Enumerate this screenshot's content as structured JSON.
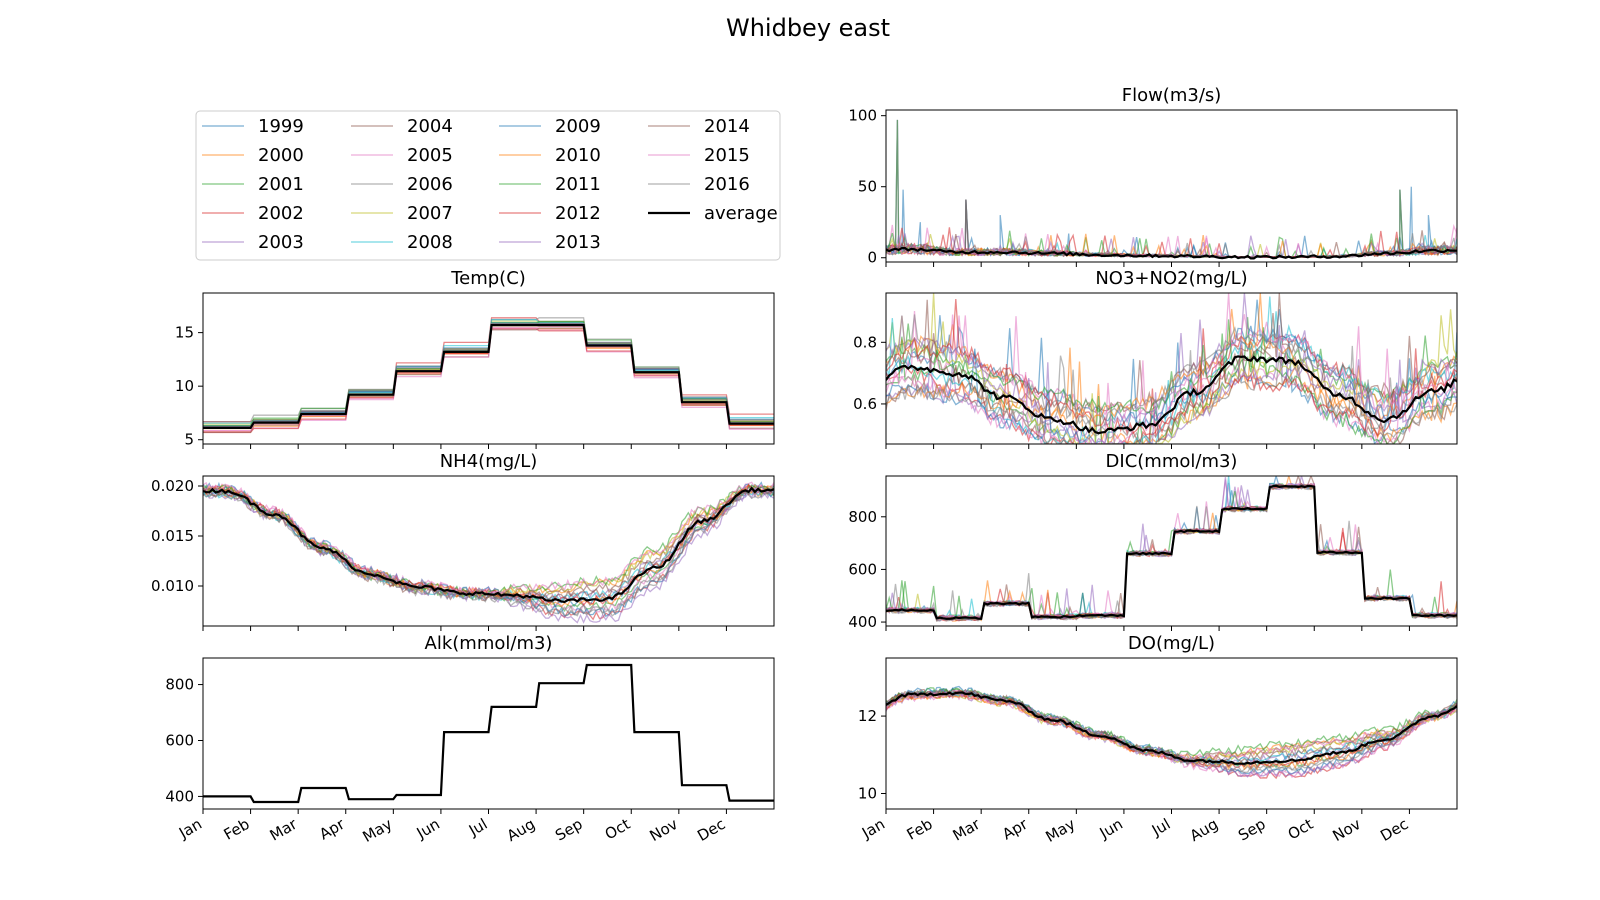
{
  "figure_title": "Whidbey east",
  "colors": {
    "years": [
      "#1f77b4",
      "#ff7f0e",
      "#2ca02c",
      "#d62728",
      "#9467bd",
      "#8c564b",
      "#e377c2",
      "#7f7f7f",
      "#bcbd22",
      "#17becf",
      "#1f77b4",
      "#ff7f0e",
      "#2ca02c",
      "#d62728",
      "#9467bd",
      "#8c564b",
      "#e377c2",
      "#7f7f7f"
    ],
    "average": "#000000"
  },
  "legend": {
    "years": [
      "1999",
      "2000",
      "2001",
      "2002",
      "2003",
      "2004",
      "2005",
      "2006",
      "2007",
      "2008",
      "2009",
      "2010",
      "2011",
      "2012",
      "2013",
      "2014",
      "2015",
      "2016"
    ],
    "average_label": "average",
    "placement": "top-left"
  },
  "months": [
    "Jan",
    "Feb",
    "Mar",
    "Apr",
    "May",
    "Jun",
    "Jul",
    "Aug",
    "Sep",
    "Oct",
    "Nov",
    "Dec"
  ],
  "chart_data": [
    {
      "id": "temp",
      "type": "line",
      "title": "Temp(C)",
      "ylim": [
        4.6,
        18.7
      ],
      "yticks": [
        5,
        10,
        15
      ],
      "ytick_labels": [
        "5",
        "10",
        "15"
      ],
      "average_monthly": [
        6.1,
        6.6,
        7.4,
        9.2,
        11.4,
        13.2,
        15.7,
        15.7,
        13.8,
        11.3,
        8.5,
        6.5
      ],
      "spread": 0.9,
      "shape": "step"
    },
    {
      "id": "flow",
      "type": "line",
      "title": "Flow(m3/s)",
      "ylim": [
        -3,
        104
      ],
      "yticks": [
        0,
        50,
        100
      ],
      "ytick_labels": [
        "0",
        "50",
        "100"
      ],
      "average_monthly": [
        6,
        4,
        4,
        3,
        2,
        1.5,
        1,
        0.5,
        0.5,
        1,
        3,
        5
      ],
      "spikes": [
        [
          0.02,
          97
        ],
        [
          0.03,
          48
        ],
        [
          0.06,
          25
        ],
        [
          0.14,
          41
        ],
        [
          0.2,
          30
        ],
        [
          0.32,
          17
        ],
        [
          0.9,
          48
        ],
        [
          0.92,
          50
        ],
        [
          0.95,
          30
        ]
      ],
      "shape": "flow"
    },
    {
      "id": "nh4",
      "type": "line",
      "title": "NH4(mg/L)",
      "ylim": [
        0.006,
        0.021
      ],
      "yticks": [
        0.01,
        0.015,
        0.02
      ],
      "ytick_labels": [
        "0.010",
        "0.015",
        "0.020"
      ],
      "average_monthly": [
        0.0195,
        0.0172,
        0.0138,
        0.0112,
        0.0099,
        0.0093,
        0.0091,
        0.0085,
        0.0087,
        0.0118,
        0.0165,
        0.0196
      ],
      "spread": 0.0012,
      "shape": "smooth"
    },
    {
      "id": "no3",
      "type": "line",
      "title": "NO3+NO2(mg/L)",
      "ylim": [
        0.47,
        0.96
      ],
      "yticks": [
        0.6,
        0.8
      ],
      "ytick_labels": [
        "0.6",
        "0.8"
      ],
      "average_monthly": [
        0.72,
        0.7,
        0.62,
        0.55,
        0.51,
        0.53,
        0.64,
        0.75,
        0.74,
        0.63,
        0.55,
        0.64
      ],
      "spread": 0.08,
      "shape": "noisy"
    },
    {
      "id": "alk",
      "type": "line",
      "title": "Alk(mmol/m3)",
      "ylim": [
        355,
        895
      ],
      "yticks": [
        400,
        600,
        800
      ],
      "ytick_labels": [
        "400",
        "600",
        "800"
      ],
      "average_monthly": [
        400,
        380,
        430,
        390,
        405,
        630,
        720,
        805,
        870,
        630,
        440,
        385
      ],
      "spread": 0,
      "shape": "step"
    },
    {
      "id": "dic",
      "type": "line",
      "title": "DIC(mmol/m3)",
      "ylim": [
        385,
        955
      ],
      "yticks": [
        400,
        600,
        800
      ],
      "ytick_labels": [
        "400",
        "600",
        "800"
      ],
      "average_monthly": [
        445,
        415,
        470,
        420,
        425,
        660,
        745,
        830,
        915,
        665,
        490,
        425
      ],
      "spread": 12,
      "shape": "step"
    },
    {
      "id": "do",
      "type": "line",
      "title": "DO(mg/L)",
      "ylim": [
        9.6,
        13.5
      ],
      "yticks": [
        10,
        12
      ],
      "ytick_labels": [
        "10",
        "12"
      ],
      "average_monthly": [
        12.55,
        12.6,
        12.4,
        11.9,
        11.5,
        11.1,
        10.85,
        10.8,
        10.85,
        11.05,
        11.4,
        12.0
      ],
      "spread": 0.25,
      "shape": "smooth"
    }
  ]
}
